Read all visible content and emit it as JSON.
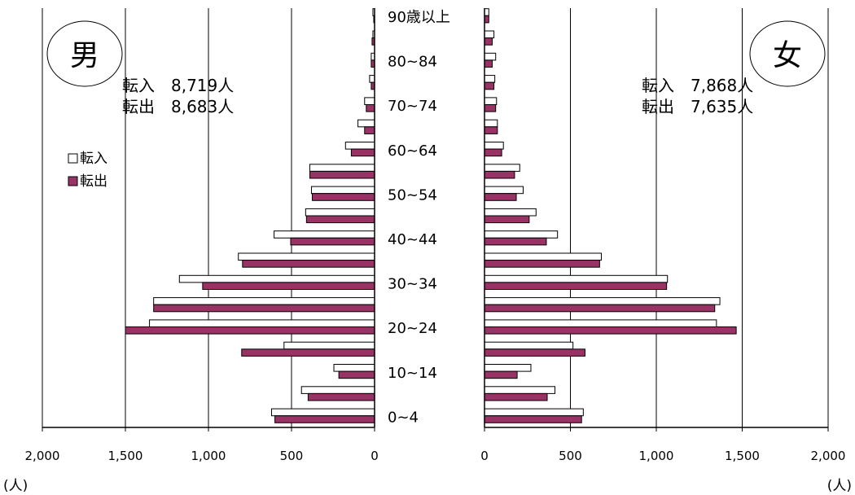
{
  "chart_data": {
    "type": "bar",
    "subtype": "population-pyramid",
    "categories": [
      "0~4",
      "5~9",
      "10~14",
      "15~19",
      "20~24",
      "25~29",
      "30~34",
      "35~39",
      "40~44",
      "45~49",
      "50~54",
      "55~59",
      "60~64",
      "65~69",
      "70~74",
      "75~79",
      "80~84",
      "85~89",
      "90歳以上"
    ],
    "category_labels": [
      "0~4",
      "10~14",
      "20~24",
      "30~34",
      "40~44",
      "50~54",
      "60~64",
      "70~74",
      "80~84",
      "90歳以上"
    ],
    "unit": "(人)",
    "legend": {
      "placement": "left",
      "in_label": "転入",
      "out_label": "転出",
      "in_marker": "□",
      "out_marker": "■"
    },
    "colors": {
      "in": "#ffffff",
      "out": "#993366",
      "outline": "#000000",
      "grid": "#000000"
    },
    "male": {
      "label": "男",
      "in_total": "転入　8,719人",
      "out_total": "転出　8,683人",
      "xlim": [
        0,
        2000
      ],
      "ticks": [
        "2,000",
        "1,500",
        "1,000",
        "500",
        "0"
      ],
      "series": [
        {
          "name": "転入",
          "values": [
            620,
            440,
            245,
            545,
            1355,
            1330,
            1175,
            820,
            605,
            415,
            380,
            390,
            175,
            100,
            60,
            30,
            20,
            10,
            10
          ]
        },
        {
          "name": "転出",
          "values": [
            600,
            400,
            215,
            800,
            1500,
            1330,
            1035,
            795,
            505,
            410,
            375,
            390,
            140,
            60,
            50,
            20,
            20,
            15,
            5
          ]
        }
      ]
    },
    "female": {
      "label": "女",
      "in_total": "転入　7,868人",
      "out_total": "転出　7,635人",
      "xlim": [
        0,
        2000
      ],
      "ticks": [
        "0",
        "500",
        "1,000",
        "1,500",
        "2,000"
      ],
      "series": [
        {
          "name": "転入",
          "values": [
            575,
            410,
            270,
            515,
            1350,
            1370,
            1065,
            680,
            425,
            300,
            225,
            205,
            110,
            75,
            70,
            60,
            65,
            55,
            25
          ]
        },
        {
          "name": "転出",
          "values": [
            565,
            365,
            190,
            585,
            1465,
            1340,
            1060,
            670,
            360,
            260,
            185,
            175,
            100,
            75,
            65,
            55,
            45,
            45,
            25
          ]
        }
      ]
    }
  }
}
